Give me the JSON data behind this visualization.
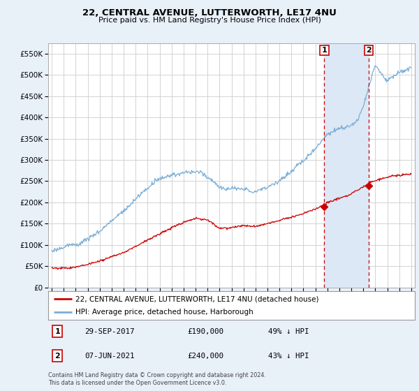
{
  "title": "22, CENTRAL AVENUE, LUTTERWORTH, LE17 4NU",
  "subtitle": "Price paid vs. HM Land Registry's House Price Index (HPI)",
  "legend_line1": "22, CENTRAL AVENUE, LUTTERWORTH, LE17 4NU (detached house)",
  "legend_line2": "HPI: Average price, detached house, Harborough",
  "footnote": "Contains HM Land Registry data © Crown copyright and database right 2024.\nThis data is licensed under the Open Government Licence v3.0.",
  "transaction1_date": "29-SEP-2017",
  "transaction1_price": "£190,000",
  "transaction1_hpi": "49% ↓ HPI",
  "transaction2_date": "07-JUN-2021",
  "transaction2_price": "£240,000",
  "transaction2_hpi": "43% ↓ HPI",
  "hpi_color": "#7aaed6",
  "price_color": "#cc0000",
  "vline_color": "#cc0000",
  "shade_color": "#dce8f5",
  "background_color": "#e8f0f8",
  "plot_bg_color": "white",
  "ylim": [
    0,
    575000
  ],
  "yticks": [
    0,
    50000,
    100000,
    150000,
    200000,
    250000,
    300000,
    350000,
    400000,
    450000,
    500000,
    550000
  ],
  "transaction1_year": 2017.75,
  "transaction2_year": 2021.44,
  "transaction1_price_val": 190000,
  "transaction2_price_val": 240000
}
